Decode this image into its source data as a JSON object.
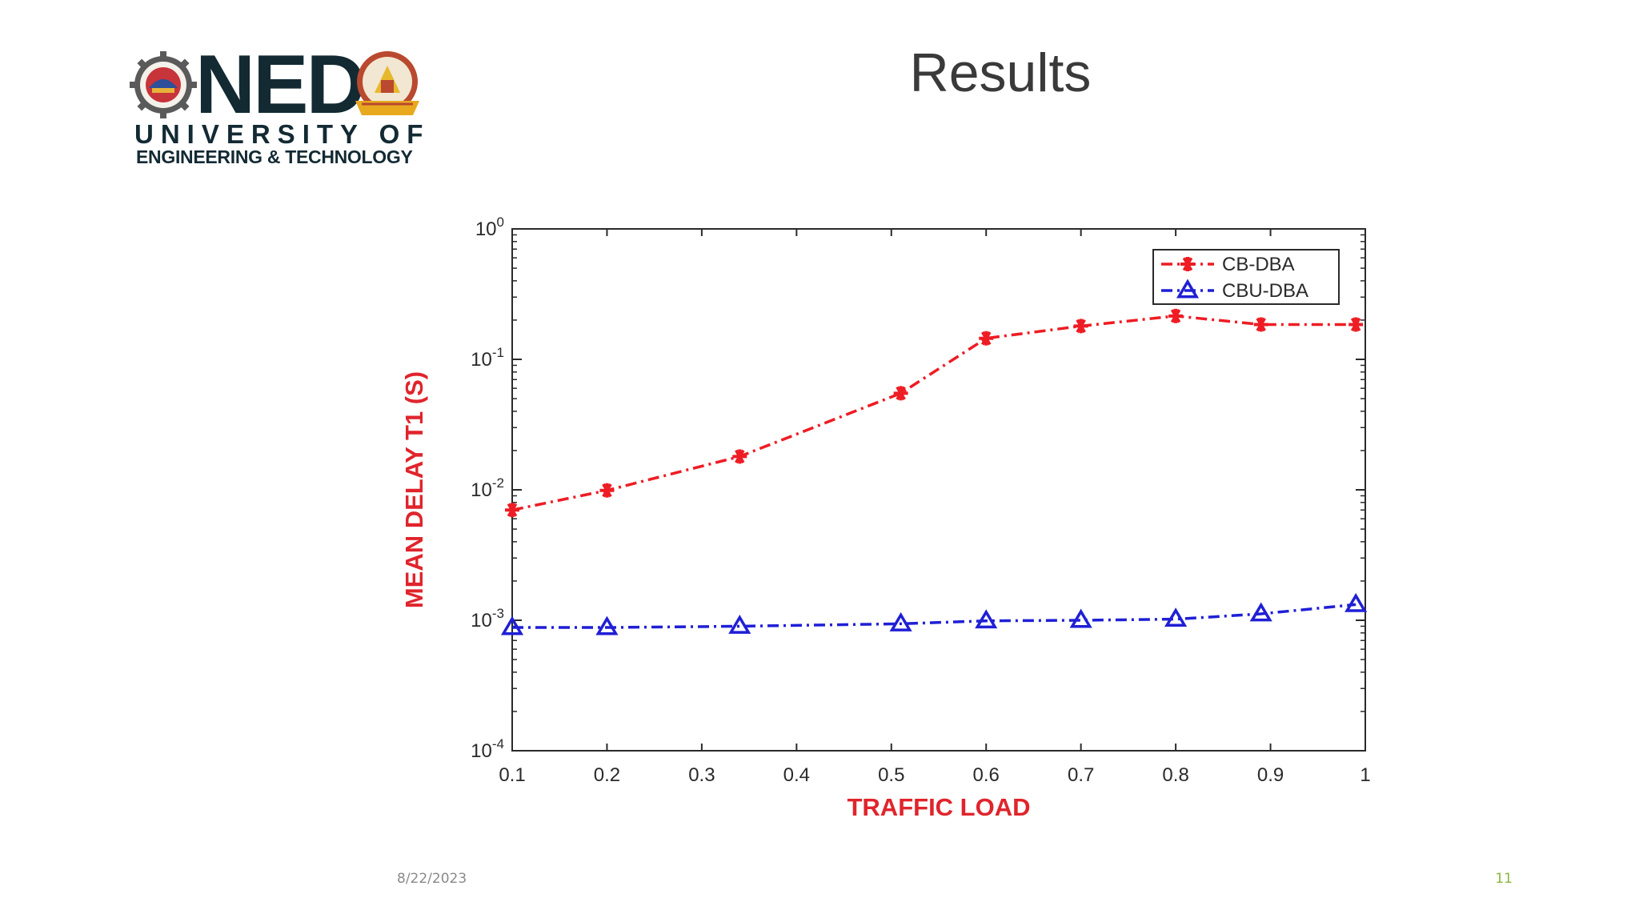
{
  "slide": {
    "title": "Results",
    "date": "8/22/2023",
    "page_number": "11"
  },
  "logo": {
    "name": "NED",
    "line1": "UNIVERSITY OF",
    "line2": "ENGINEERING & TECHNOLOGY",
    "text_color": "#132a33"
  },
  "chart_data": {
    "type": "line",
    "xlabel": "TRAFFIC LOAD",
    "ylabel": "MEAN DELAY T1 (S)",
    "x_scale": "linear",
    "y_scale": "log",
    "xlim": [
      0.1,
      1
    ],
    "ylim": [
      0.0001,
      1
    ],
    "x_ticks": [
      0.1,
      0.2,
      0.3,
      0.4,
      0.5,
      0.6,
      0.7,
      0.8,
      0.9,
      1
    ],
    "x_tick_labels": [
      "0.1",
      "0.2",
      "0.3",
      "0.4",
      "0.5",
      "0.6",
      "0.7",
      "0.8",
      "0.9",
      "1"
    ],
    "y_ticks": [
      {
        "value": 0.0001,
        "exp": "-4"
      },
      {
        "value": 0.001,
        "exp": "-3"
      },
      {
        "value": 0.01,
        "exp": "-2"
      },
      {
        "value": 0.1,
        "exp": "-1"
      },
      {
        "value": 1,
        "exp": "0"
      }
    ],
    "y_tick_base": "10",
    "grid": false,
    "legend_position": "top-right",
    "label_color": "#e0242c",
    "series": [
      {
        "name": "CB-DBA",
        "color": "#ee1c24",
        "marker": "asterisk",
        "line_style": "dash-dot",
        "x": [
          0.1,
          0.2,
          0.34,
          0.51,
          0.6,
          0.7,
          0.8,
          0.89,
          0.99
        ],
        "y": [
          0.007,
          0.0099,
          0.018,
          0.055,
          0.145,
          0.18,
          0.215,
          0.185,
          0.185
        ]
      },
      {
        "name": "CBU-DBA",
        "color": "#1f1fd6",
        "marker": "triangle",
        "line_style": "dash-dot",
        "x": [
          0.1,
          0.2,
          0.34,
          0.51,
          0.6,
          0.7,
          0.8,
          0.89,
          0.99
        ],
        "y": [
          0.00088,
          0.00088,
          0.0009,
          0.00094,
          0.00099,
          0.001,
          0.00102,
          0.00112,
          0.00132
        ]
      }
    ]
  }
}
